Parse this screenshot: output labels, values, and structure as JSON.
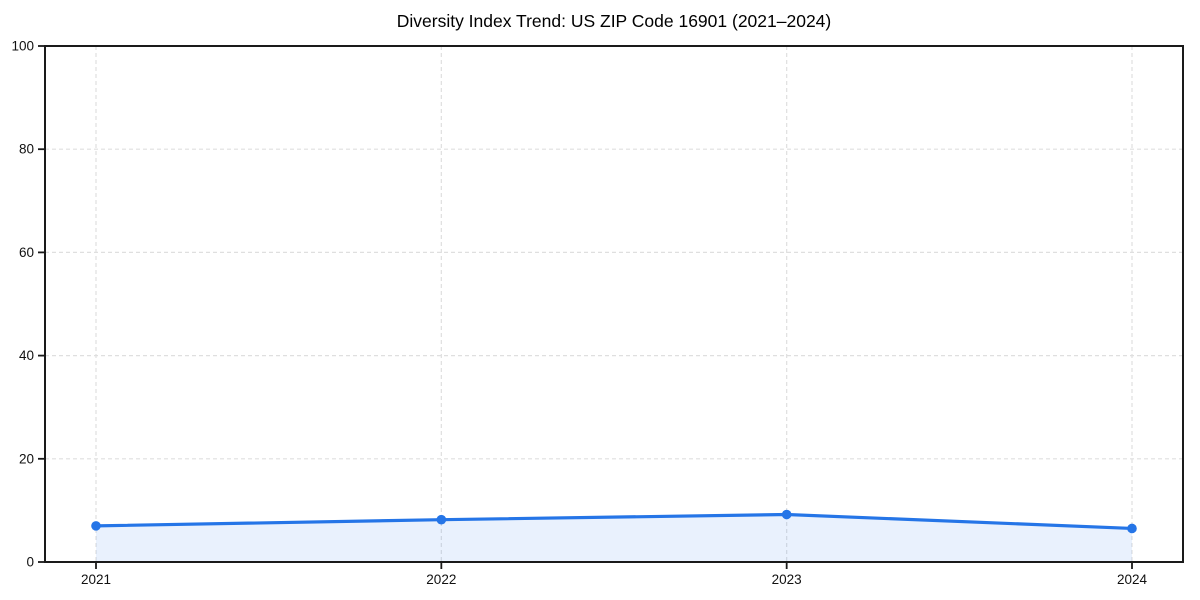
{
  "figure": {
    "background": "#ffffff"
  },
  "chart_data": {
    "type": "line",
    "title": "Diversity Index Trend: US ZIP Code 16901 (2021–2024)",
    "categories": [
      "2021",
      "2022",
      "2023",
      "2024"
    ],
    "values": [
      7.0,
      8.2,
      9.2,
      6.5
    ],
    "series": [
      {
        "name": "Diversity Index",
        "values": [
          7.0,
          8.2,
          9.2,
          6.5
        ]
      }
    ],
    "xlabel": "",
    "ylabel": "",
    "ylim": [
      0,
      100
    ],
    "yticks": [
      0,
      20,
      40,
      60,
      80,
      100
    ],
    "grid": "dashed-both-axes",
    "legend": "none",
    "area_fill": true,
    "marker": "circle",
    "colors": {
      "line": "#2575e7",
      "marker": "#2575e7",
      "area_fill": "#2575e7",
      "area_fill_opacity": 0.1,
      "gridline": "#dfdfdf",
      "frame": "#1a1a1a",
      "tick": "#1a1a1a",
      "tick_label": "#111111",
      "title": "#000000",
      "background": "#ffffff"
    }
  }
}
